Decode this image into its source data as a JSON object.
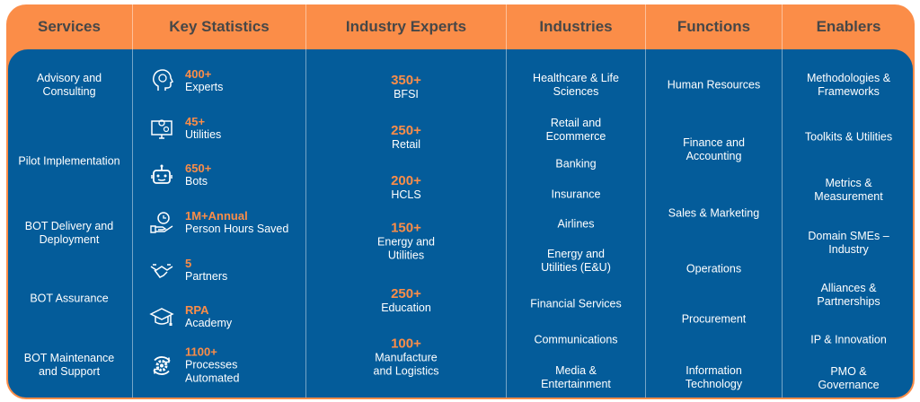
{
  "colors": {
    "orange": "#fb8d48",
    "blue": "#045c9a",
    "header_text": "#474747"
  },
  "columns": {
    "services": {
      "title": "Services",
      "items": [
        "Advisory and Consulting",
        "Pilot Implementation",
        "BOT Delivery and Deployment",
        "BOT Assurance",
        "BOT Maintenance and Support"
      ]
    },
    "key_statistics": {
      "title": "Key Statistics",
      "items": [
        {
          "value": "400+",
          "label": "Experts",
          "icon": "expert-head-icon"
        },
        {
          "value": "45+",
          "label": "Utilities",
          "icon": "monitor-utilities-icon"
        },
        {
          "value": "650+",
          "label": "Bots",
          "icon": "robot-icon"
        },
        {
          "value": "1M+Annual",
          "label": "Person Hours Saved",
          "icon": "hand-clock-icon"
        },
        {
          "value": "5",
          "label": "Partners",
          "icon": "handshake-icon"
        },
        {
          "value": "RPA",
          "label": "Academy",
          "icon": "graduation-cap-icon"
        },
        {
          "value": "1100+",
          "label": "Processes Automated",
          "icon": "gear-cycle-icon"
        }
      ]
    },
    "industry_experts": {
      "title": "Industry Experts",
      "items": [
        {
          "value": "350+",
          "label": "BFSI"
        },
        {
          "value": "250+",
          "label": "Retail"
        },
        {
          "value": "200+",
          "label": "HCLS"
        },
        {
          "value": "150+",
          "label": "Energy and Utilities"
        },
        {
          "value": "250+",
          "label": "Education"
        },
        {
          "value": "100+",
          "label": "Manufacture and Logistics"
        }
      ]
    },
    "industries": {
      "title": "Industries",
      "items": [
        "Healthcare & Life Sciences",
        "Retail and Ecommerce",
        "Banking",
        "Insurance",
        "Airlines",
        "Energy and Utilities (E&U)",
        "Financial Services",
        "Communications",
        "Media & Entertainment"
      ]
    },
    "functions": {
      "title": "Functions",
      "items": [
        "Human Resources",
        "Finance and Accounting",
        "Sales & Marketing",
        "Operations",
        "Procurement",
        "Information Technology"
      ]
    },
    "enablers": {
      "title": "Enablers",
      "items": [
        "Methodologies & Frameworks",
        "Toolkits & Utilities",
        "Metrics & Measurement",
        "Domain SMEs – Industry",
        "Alliances & Partnerships",
        "IP & Innovation",
        "PMO & Governance"
      ]
    }
  }
}
